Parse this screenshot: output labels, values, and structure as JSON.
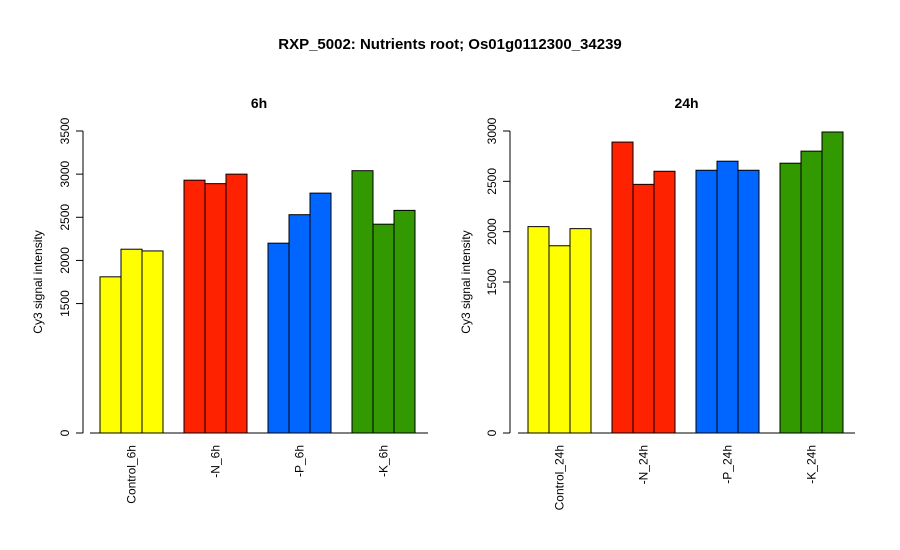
{
  "title": "RXP_5002: Nutrients root; Os01g0112300_34239",
  "chart_data": [
    {
      "type": "bar",
      "title": "6h",
      "ylabel": "Cy3 signal intensity",
      "ylim": [
        0,
        3500
      ],
      "yticks": [
        0,
        1500,
        2000,
        2500,
        3000,
        3500
      ],
      "groups": [
        {
          "label": "Control_6h",
          "color": "#ffff00",
          "values": [
            1810,
            2130,
            2110
          ]
        },
        {
          "label": "-N_6h",
          "color": "#ff2200",
          "values": [
            2930,
            2890,
            3000
          ]
        },
        {
          "label": "-P_6h",
          "color": "#0066ff",
          "values": [
            2200,
            2530,
            2780
          ]
        },
        {
          "label": "-K_6h",
          "color": "#339900",
          "values": [
            3040,
            2420,
            2580
          ]
        }
      ]
    },
    {
      "type": "bar",
      "title": "24h",
      "ylabel": "Cy3 signal intensity",
      "ylim": [
        0,
        3000
      ],
      "yticks": [
        0,
        1500,
        2000,
        2500,
        3000
      ],
      "groups": [
        {
          "label": "Control_24h",
          "color": "#ffff00",
          "values": [
            2050,
            1860,
            2030
          ]
        },
        {
          "label": "-N_24h",
          "color": "#ff2200",
          "values": [
            2890,
            2470,
            2600
          ]
        },
        {
          "label": "-P_24h",
          "color": "#0066ff",
          "values": [
            2610,
            2700,
            2610
          ]
        },
        {
          "label": "-K_24h",
          "color": "#339900",
          "values": [
            2680,
            2800,
            2990
          ]
        }
      ]
    }
  ]
}
